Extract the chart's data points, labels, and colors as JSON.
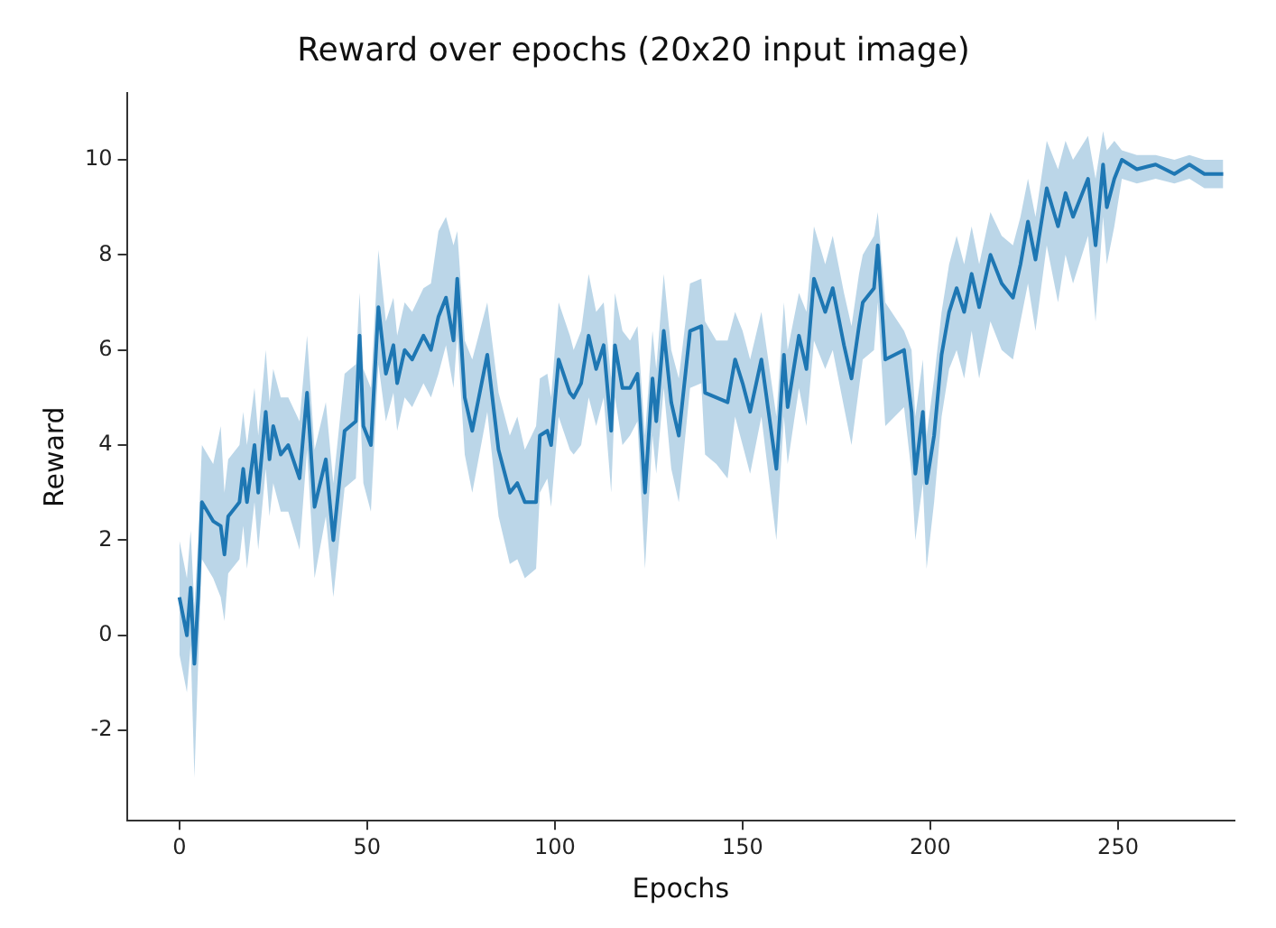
{
  "chart_data": {
    "type": "line",
    "title": "Reward over epochs (20x20 input image)",
    "xlabel": "Epochs",
    "ylabel": "Reward",
    "xlim": [
      -14,
      281
    ],
    "xticks": [
      0,
      50,
      100,
      150,
      200,
      250
    ],
    "ylim": [
      -3.9,
      11.4
    ],
    "yticks": [
      -2,
      0,
      2,
      4,
      6,
      8,
      10
    ],
    "grid": false,
    "marker": "none",
    "line_style": "solid",
    "x": [
      0,
      2,
      3,
      4,
      5,
      6,
      9,
      11,
      12,
      13,
      16,
      17,
      18,
      20,
      21,
      23,
      24,
      25,
      27,
      29,
      32,
      34,
      36,
      39,
      41,
      44,
      47,
      48,
      49,
      51,
      53,
      55,
      57,
      58,
      60,
      62,
      65,
      67,
      69,
      71,
      73,
      74,
      76,
      78,
      82,
      85,
      88,
      90,
      92,
      95,
      96,
      98,
      99,
      101,
      104,
      105,
      107,
      109,
      111,
      113,
      115,
      116,
      118,
      120,
      122,
      124,
      126,
      127,
      129,
      131,
      133,
      136,
      139,
      140,
      143,
      146,
      148,
      150,
      152,
      155,
      159,
      161,
      162,
      165,
      167,
      169,
      172,
      174,
      177,
      179,
      181,
      182,
      185,
      186,
      188,
      193,
      195,
      196,
      198,
      199,
      201,
      203,
      205,
      207,
      209,
      211,
      213,
      216,
      219,
      222,
      224,
      226,
      228,
      231,
      234,
      236,
      238,
      242,
      244,
      246,
      247,
      249,
      251,
      255,
      260,
      265,
      269,
      273,
      278
    ],
    "series": [
      {
        "color": "#1f77b4",
        "values": [
          0.8,
          0,
          1.0,
          -0.6,
          0.8,
          2.8,
          2.4,
          2.3,
          1.7,
          2.5,
          2.8,
          3.5,
          2.8,
          4.0,
          3.0,
          4.7,
          3.7,
          4.4,
          3.8,
          4.0,
          3.3,
          5.1,
          2.7,
          3.7,
          2.0,
          4.3,
          4.5,
          6.3,
          4.4,
          4.0,
          6.9,
          5.5,
          6.1,
          5.3,
          6.0,
          5.8,
          6.3,
          6.0,
          6.7,
          7.1,
          6.2,
          7.5,
          5.0,
          4.3,
          5.9,
          3.9,
          3.0,
          3.2,
          2.8,
          2.8,
          4.2,
          4.3,
          4.0,
          5.8,
          5.1,
          5.0,
          5.3,
          6.3,
          5.6,
          6.1,
          4.3,
          6.1,
          5.2,
          5.2,
          5.5,
          3.0,
          5.4,
          4.5,
          6.4,
          4.9,
          4.2,
          6.4,
          6.5,
          5.1,
          5.0,
          4.9,
          5.8,
          5.3,
          4.7,
          5.8,
          3.5,
          5.9,
          4.8,
          6.3,
          5.6,
          7.5,
          6.8,
          7.3,
          6.1,
          5.4,
          6.5,
          7.0,
          7.3,
          8.2,
          5.8,
          6.0,
          4.7,
          3.4,
          4.7,
          3.2,
          4.2,
          5.9,
          6.8,
          7.3,
          6.8,
          7.6,
          6.9,
          8.0,
          7.4,
          7.1,
          7.8,
          8.7,
          7.9,
          9.4,
          8.6,
          9.3,
          8.8,
          9.6,
          8.2,
          9.9,
          9.0,
          9.6,
          10.0,
          9.8,
          9.9,
          9.7,
          9.9,
          9.7,
          9.7
        ],
        "lower": [
          -0.4,
          -1.2,
          -0.2,
          -3.0,
          -0.6,
          1.6,
          1.2,
          0.8,
          0.3,
          1.3,
          1.6,
          2.3,
          1.4,
          2.8,
          1.8,
          3.5,
          2.5,
          3.2,
          2.6,
          2.6,
          1.8,
          3.9,
          1.2,
          2.5,
          0.8,
          3.1,
          3.3,
          5.0,
          3.2,
          2.6,
          5.7,
          4.5,
          5.1,
          4.3,
          5.0,
          4.8,
          5.3,
          5.0,
          5.5,
          6.1,
          5.2,
          6.3,
          3.8,
          3.0,
          4.7,
          2.5,
          1.5,
          1.6,
          1.2,
          1.4,
          3.0,
          3.3,
          2.7,
          4.6,
          3.9,
          3.8,
          4.0,
          5.0,
          4.4,
          5.0,
          3.0,
          5.0,
          4.0,
          4.2,
          4.5,
          1.4,
          4.2,
          3.4,
          5.2,
          3.5,
          2.8,
          5.2,
          5.3,
          3.8,
          3.6,
          3.3,
          4.6,
          4.0,
          3.4,
          4.6,
          2.0,
          4.6,
          3.6,
          5.2,
          4.4,
          6.2,
          5.6,
          6.0,
          4.8,
          4.0,
          5.2,
          5.8,
          6.0,
          7.0,
          4.4,
          4.8,
          3.4,
          2.0,
          3.2,
          1.4,
          2.8,
          4.6,
          5.6,
          6.0,
          5.4,
          6.4,
          5.4,
          6.6,
          6.0,
          5.8,
          6.6,
          7.4,
          6.4,
          8.2,
          7.0,
          8.0,
          7.4,
          8.4,
          6.6,
          8.8,
          7.8,
          8.6,
          9.6,
          9.5,
          9.6,
          9.5,
          9.6,
          9.4,
          9.4
        ],
        "upper": [
          2.0,
          1.2,
          2.2,
          0.6,
          2.0,
          4.0,
          3.6,
          4.4,
          3.0,
          3.7,
          4.0,
          4.7,
          4.0,
          5.2,
          4.2,
          6.0,
          4.9,
          5.6,
          5.0,
          5.0,
          4.5,
          6.3,
          3.9,
          4.9,
          3.2,
          5.5,
          5.7,
          7.2,
          5.6,
          5.2,
          8.1,
          6.6,
          7.1,
          6.3,
          7.0,
          6.8,
          7.3,
          7.4,
          8.5,
          8.8,
          8.2,
          8.5,
          6.2,
          5.8,
          7.0,
          5.1,
          4.2,
          4.6,
          3.9,
          4.4,
          5.4,
          5.5,
          5.0,
          7.0,
          6.3,
          6.0,
          6.4,
          7.6,
          6.8,
          7.0,
          5.4,
          7.2,
          6.4,
          6.2,
          6.5,
          4.2,
          6.4,
          5.6,
          7.6,
          6.0,
          5.4,
          7.4,
          7.5,
          6.6,
          6.2,
          6.2,
          6.8,
          6.4,
          5.8,
          6.8,
          4.6,
          7.0,
          6.0,
          7.2,
          6.8,
          8.6,
          7.8,
          8.4,
          7.2,
          6.5,
          7.6,
          8.0,
          8.4,
          8.9,
          7.0,
          6.4,
          6.0,
          4.6,
          5.8,
          4.2,
          5.4,
          6.8,
          7.8,
          8.4,
          7.8,
          8.6,
          7.8,
          8.9,
          8.4,
          8.2,
          8.8,
          9.6,
          8.8,
          10.4,
          9.8,
          10.4,
          10.0,
          10.5,
          9.6,
          10.6,
          10.2,
          10.4,
          10.2,
          10.1,
          10.1,
          10.0,
          10.1,
          10.0,
          10.0
        ]
      }
    ]
  }
}
